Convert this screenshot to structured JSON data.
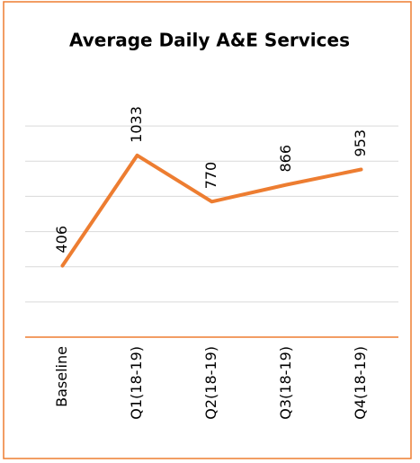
{
  "chart_data": {
    "type": "line",
    "title": "Average Daily A&E Services",
    "categories": [
      "Baseline",
      "Q1(18-19)",
      "Q2(18-19)",
      "Q3(18-19)",
      "Q4(18-19)"
    ],
    "series": [
      {
        "name": "Average Daily A&E Services",
        "color": "#ED7D31",
        "values": [
          406,
          1033,
          770,
          866,
          953
        ]
      }
    ],
    "ylim": [
      0,
      1400
    ],
    "yticks": [
      200,
      400,
      600,
      800,
      1000,
      1200
    ],
    "grid": true
  }
}
